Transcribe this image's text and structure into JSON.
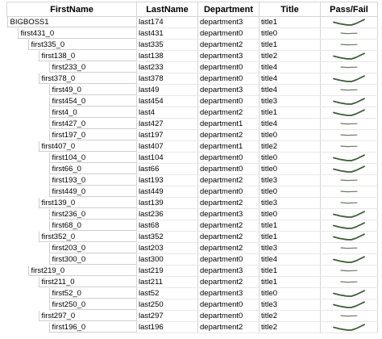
{
  "columns": [
    "FirstName",
    "LastName",
    "Department",
    "Title",
    "Pass/Fail"
  ],
  "rows": [
    {
      "first": "BIGBOSS1",
      "last": "last174",
      "dept": "department3",
      "title": "title1",
      "level": 0,
      "result": "pass"
    },
    {
      "first": "first431_0",
      "last": "last431",
      "dept": "department0",
      "title": "title0",
      "level": 1,
      "result": "fail"
    },
    {
      "first": "first335_0",
      "last": "last335",
      "dept": "department2",
      "title": "title1",
      "level": 2,
      "result": "fail"
    },
    {
      "first": "first138_0",
      "last": "last138",
      "dept": "department3",
      "title": "title2",
      "level": 3,
      "result": "pass"
    },
    {
      "first": "first233_0",
      "last": "last233",
      "dept": "department0",
      "title": "title4",
      "level": 4,
      "result": "fail"
    },
    {
      "first": "first378_0",
      "last": "last378",
      "dept": "department0",
      "title": "title4",
      "level": 3,
      "result": "pass"
    },
    {
      "first": "first49_0",
      "last": "last49",
      "dept": "department3",
      "title": "title4",
      "level": 4,
      "result": "fail"
    },
    {
      "first": "first454_0",
      "last": "last454",
      "dept": "department0",
      "title": "title3",
      "level": 4,
      "result": "pass"
    },
    {
      "first": "first4_0",
      "last": "last4",
      "dept": "department2",
      "title": "title1",
      "level": 4,
      "result": "pass"
    },
    {
      "first": "first427_0",
      "last": "last427",
      "dept": "department1",
      "title": "title4",
      "level": 4,
      "result": "fail"
    },
    {
      "first": "first197_0",
      "last": "last197",
      "dept": "department2",
      "title": "title0",
      "level": 4,
      "result": "fail"
    },
    {
      "first": "first407_0",
      "last": "last407",
      "dept": "department1",
      "title": "title2",
      "level": 3,
      "result": "fail"
    },
    {
      "first": "first104_0",
      "last": "last104",
      "dept": "department0",
      "title": "title0",
      "level": 4,
      "result": "pass"
    },
    {
      "first": "first66_0",
      "last": "last66",
      "dept": "department0",
      "title": "title0",
      "level": 4,
      "result": "pass"
    },
    {
      "first": "first193_0",
      "last": "last193",
      "dept": "department2",
      "title": "title3",
      "level": 4,
      "result": "fail"
    },
    {
      "first": "first449_0",
      "last": "last449",
      "dept": "department0",
      "title": "title0",
      "level": 4,
      "result": "fail"
    },
    {
      "first": "first139_0",
      "last": "last139",
      "dept": "department2",
      "title": "title3",
      "level": 3,
      "result": "fail"
    },
    {
      "first": "first236_0",
      "last": "last236",
      "dept": "department3",
      "title": "title0",
      "level": 4,
      "result": "pass"
    },
    {
      "first": "first68_0",
      "last": "last68",
      "dept": "department2",
      "title": "title1",
      "level": 4,
      "result": "pass"
    },
    {
      "first": "first352_0",
      "last": "last352",
      "dept": "department2",
      "title": "title1",
      "level": 3,
      "result": "pass"
    },
    {
      "first": "first203_0",
      "last": "last203",
      "dept": "department2",
      "title": "title3",
      "level": 4,
      "result": "fail"
    },
    {
      "first": "first300_0",
      "last": "last300",
      "dept": "department0",
      "title": "title4",
      "level": 4,
      "result": "pass"
    },
    {
      "first": "first219_0",
      "last": "last219",
      "dept": "department3",
      "title": "title1",
      "level": 2,
      "result": "fail"
    },
    {
      "first": "first211_0",
      "last": "last211",
      "dept": "department2",
      "title": "title1",
      "level": 3,
      "result": "fail"
    },
    {
      "first": "first52_0",
      "last": "last52",
      "dept": "department3",
      "title": "title0",
      "level": 4,
      "result": "pass"
    },
    {
      "first": "first250_0",
      "last": "last250",
      "dept": "department0",
      "title": "title3",
      "level": 4,
      "result": "pass"
    },
    {
      "first": "first297_0",
      "last": "last297",
      "dept": "department0",
      "title": "title2",
      "level": 3,
      "result": "fail"
    },
    {
      "first": "first196_0",
      "last": "last196",
      "dept": "department2",
      "title": "title2",
      "level": 4,
      "result": "pass"
    }
  ],
  "icons": {
    "pass": "pass-check-icon",
    "fail": "fail-dash-icon"
  },
  "colors": {
    "mark": "#3f5e3a",
    "grid": "#d6d6d6"
  }
}
